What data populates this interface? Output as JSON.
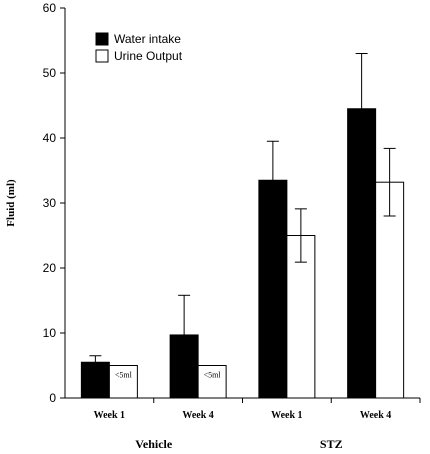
{
  "chart_data": {
    "type": "bar",
    "title": "",
    "xlabel": "",
    "ylabel": "Fluid (ml)",
    "ylim": [
      0,
      60
    ],
    "yticks": [
      0,
      10,
      20,
      30,
      40,
      50,
      60
    ],
    "categories": [
      "Week 1",
      "Week 4",
      "Week 1",
      "Week 4"
    ],
    "groups": [
      {
        "label": "Vehicle",
        "categories": [
          0,
          1
        ]
      },
      {
        "label": "STZ",
        "categories": [
          2,
          3
        ]
      }
    ],
    "series": [
      {
        "name": "Water intake",
        "color": "#000000",
        "values": [
          5.5,
          9.7,
          33.5,
          44.5
        ],
        "errors": [
          1.0,
          6.1,
          6.0,
          8.5
        ]
      },
      {
        "name": "Urine Output",
        "color": "#ffffff",
        "values": [
          5.0,
          5.0,
          25.0,
          33.2
        ],
        "errors": [
          0,
          0,
          4.1,
          5.2
        ]
      }
    ],
    "annotations": [
      {
        "text": "<5ml",
        "category": 0,
        "series": 1
      },
      {
        "text": "<5ml",
        "category": 1,
        "series": 1
      }
    ],
    "legend_position": "top-left",
    "grid": false
  }
}
